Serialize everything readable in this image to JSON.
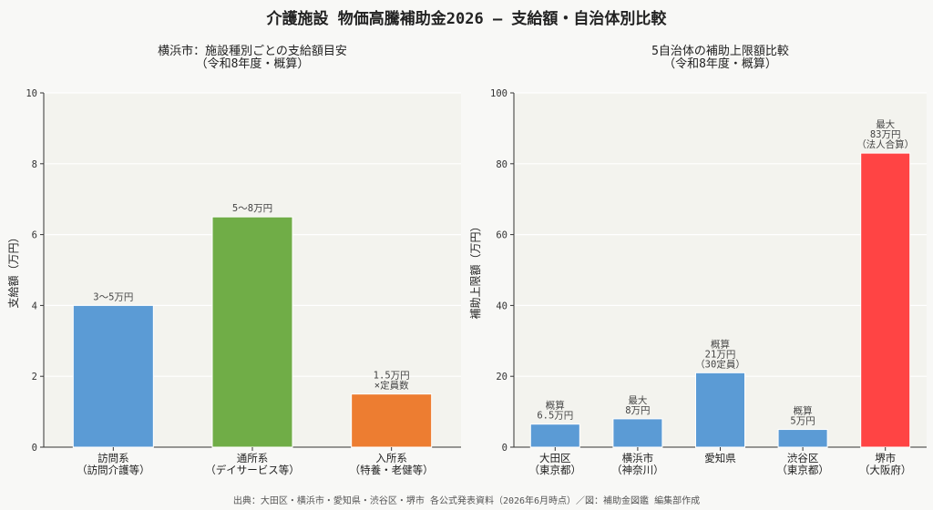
{
  "title": "介護施設 物価高騰補助金2026 ― 支給額・自治体別比較",
  "footer": "出典：大田区・横浜市・愛知県・渋谷区・堺市 各公式発表資料（2026年6月時点）／図：補助金図鑑 編集部作成",
  "chart_data": [
    {
      "type": "bar",
      "title": [
        "横浜市：施設種別ごとの支給額目安",
        "（令和8年度・概算）"
      ],
      "ylabel": "支給額（万円）",
      "ylim": [
        0,
        10
      ],
      "yticks": [
        0,
        2,
        4,
        6,
        8,
        10
      ],
      "grid": true,
      "categories": [
        [
          "訪問系",
          "（訪問介護等）"
        ],
        [
          "通所系",
          "（デイサービス等）"
        ],
        [
          "入所系",
          "（特養・老健等）"
        ]
      ],
      "values": [
        4,
        6.5,
        1.5
      ],
      "colors": [
        "#5b9bd5",
        "#70ad47",
        "#ed7d31"
      ],
      "data_labels": [
        [
          "3〜5万円"
        ],
        [
          "5〜8万円"
        ],
        [
          "1.5万円",
          "×定員数"
        ]
      ]
    },
    {
      "type": "bar",
      "title": [
        "5自治体の補助上限額比較",
        "（令和8年度・概算）"
      ],
      "ylabel": "補助上限額（万円）",
      "ylim": [
        0,
        100
      ],
      "yticks": [
        0,
        20,
        40,
        60,
        80,
        100
      ],
      "grid": true,
      "categories": [
        [
          "大田区",
          "（東京都）"
        ],
        [
          "横浜市",
          "（神奈川）"
        ],
        [
          "愛知県"
        ],
        [
          "渋谷区",
          "（東京都）"
        ],
        [
          "堺市",
          "（大阪府）"
        ]
      ],
      "values": [
        6.5,
        8,
        21,
        5,
        83
      ],
      "colors": [
        "#5b9bd5",
        "#5b9bd5",
        "#5b9bd5",
        "#5b9bd5",
        "#ff4444"
      ],
      "data_labels": [
        [
          "概算",
          "6.5万円"
        ],
        [
          "最大",
          "8万円"
        ],
        [
          "概算",
          "21万円",
          "（30定員）"
        ],
        [
          "概算",
          "5万円"
        ],
        [
          "最大",
          "83万円",
          "（法人合算）"
        ]
      ]
    }
  ]
}
